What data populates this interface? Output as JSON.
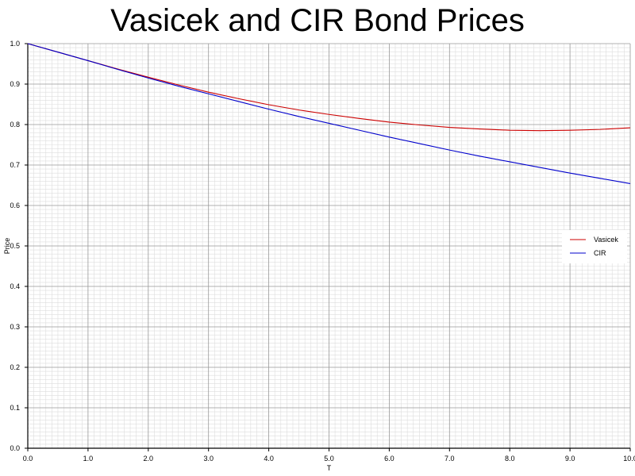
{
  "chart_data": {
    "type": "line",
    "title": "Vasicek and CIR Bond Prices",
    "xlabel": "T",
    "ylabel": "Price",
    "xlim": [
      0,
      10
    ],
    "ylim": [
      0,
      1
    ],
    "x_ticks": [
      "0.0",
      "1.0",
      "2.0",
      "3.0",
      "4.0",
      "5.0",
      "6.0",
      "7.0",
      "8.0",
      "9.0",
      "10.0"
    ],
    "y_ticks": [
      "0.0",
      "0.1",
      "0.2",
      "0.3",
      "0.4",
      "0.5",
      "0.6",
      "0.7",
      "0.8",
      "0.9",
      "1.0"
    ],
    "grid": true,
    "legend_position": "right",
    "series": [
      {
        "name": "Vasicek",
        "color": "#cc0000",
        "x": [
          0,
          0.5,
          1,
          1.5,
          2,
          2.5,
          3,
          3.5,
          4,
          4.5,
          5,
          5.5,
          6,
          6.5,
          7,
          7.5,
          8,
          8.5,
          9,
          9.5,
          10
        ],
        "values": [
          1.0,
          0.979,
          0.958,
          0.937,
          0.917,
          0.898,
          0.88,
          0.864,
          0.849,
          0.836,
          0.825,
          0.815,
          0.806,
          0.799,
          0.793,
          0.789,
          0.786,
          0.785,
          0.786,
          0.788,
          0.792
        ]
      },
      {
        "name": "CIR",
        "color": "#0000cc",
        "x": [
          0,
          0.5,
          1,
          1.5,
          2,
          2.5,
          3,
          3.5,
          4,
          4.5,
          5,
          5.5,
          6,
          6.5,
          7,
          7.5,
          8,
          8.5,
          9,
          9.5,
          10
        ],
        "values": [
          1.0,
          0.979,
          0.958,
          0.936,
          0.915,
          0.895,
          0.876,
          0.857,
          0.838,
          0.82,
          0.803,
          0.786,
          0.769,
          0.753,
          0.737,
          0.722,
          0.708,
          0.694,
          0.68,
          0.667,
          0.654
        ]
      }
    ]
  }
}
